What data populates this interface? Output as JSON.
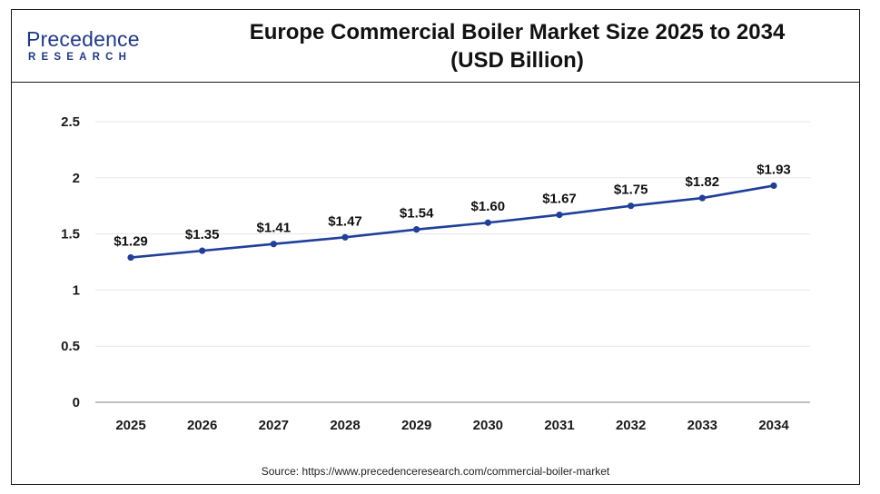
{
  "brand": {
    "name_top": "Precedence",
    "name_bottom": "RESEARCH",
    "color": "#1f3a8a"
  },
  "header": {
    "title_line1": "Europe Commercial Boiler Market Size 2025 to 2034",
    "title_line2": "(USD Billion)"
  },
  "source": "Source: https://www.precedenceresearch.com/commercial-boiler-market",
  "chart_data": {
    "type": "line",
    "title": "Europe Commercial Boiler Market Size 2025 to 2034 (USD Billion)",
    "xlabel": "",
    "ylabel": "",
    "categories": [
      "2025",
      "2026",
      "2027",
      "2028",
      "2029",
      "2030",
      "2031",
      "2032",
      "2033",
      "2034"
    ],
    "series": [
      {
        "values": [
          1.29,
          1.35,
          1.41,
          1.47,
          1.54,
          1.6,
          1.67,
          1.75,
          1.82,
          1.93
        ],
        "labels": [
          "$1.29",
          "$1.35",
          "$1.41",
          "$1.47",
          "$1.54",
          "$1.60",
          "$1.67",
          "$1.75",
          "$1.82",
          "$1.93"
        ],
        "color": "#1f3f9a"
      }
    ],
    "yticks": [
      "0",
      "0.5",
      "1",
      "1.5",
      "2",
      "2.5"
    ],
    "ylim": [
      0,
      2.5
    ],
    "grid": true,
    "legend": "none"
  }
}
